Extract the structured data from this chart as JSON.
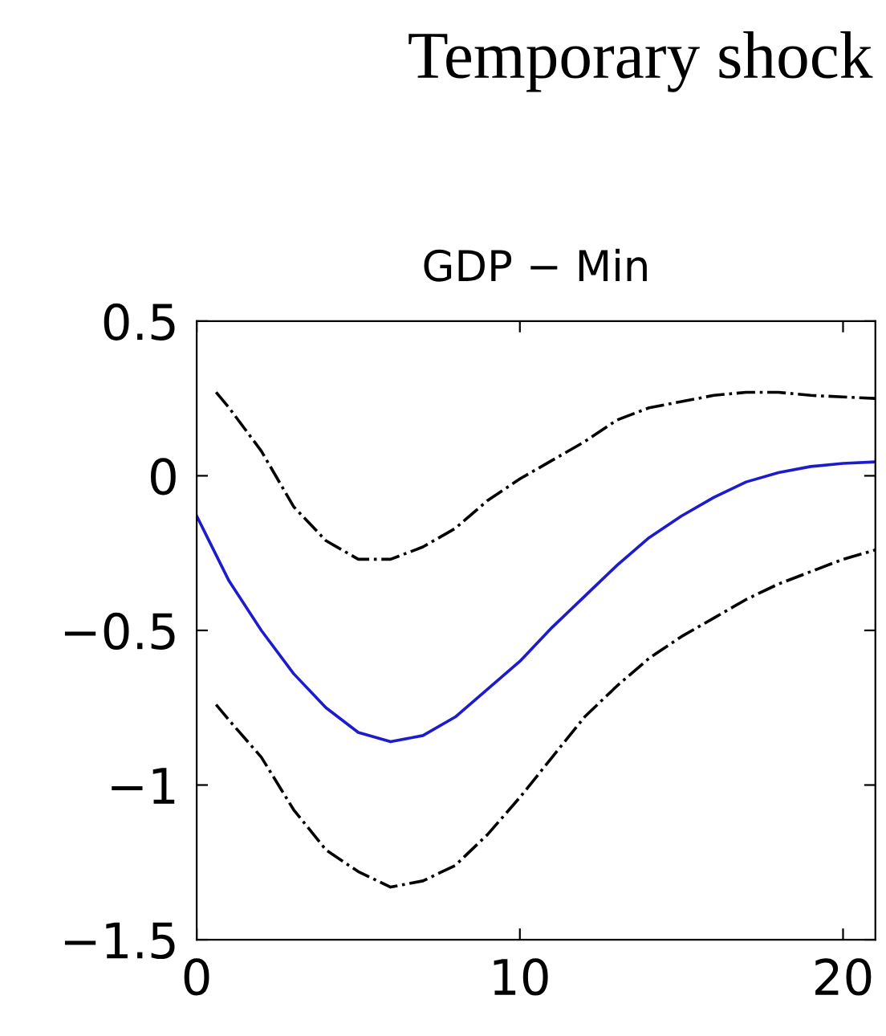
{
  "chart_data": {
    "type": "line",
    "title": "Temporary shock",
    "subtitle": "GDP − Min",
    "xlim": [
      0,
      21
    ],
    "ylim": [
      -1.5,
      0.5
    ],
    "xticks": [
      0,
      10,
      20
    ],
    "yticks": [
      -1.5,
      -1,
      -0.5,
      0,
      0.5
    ],
    "grid": false,
    "legend": false,
    "series": [
      {
        "color": "#1c1ccc",
        "line_style": "solid",
        "x": [
          0,
          1,
          2,
          3,
          4,
          5,
          6,
          7,
          8,
          9,
          10,
          11,
          12,
          13,
          14,
          15,
          16,
          17,
          18,
          19,
          20,
          21
        ],
        "values": [
          -0.13,
          -0.34,
          -0.5,
          -0.64,
          -0.75,
          -0.83,
          -0.86,
          -0.84,
          -0.78,
          -0.69,
          -0.6,
          -0.49,
          -0.39,
          -0.29,
          -0.2,
          -0.13,
          -0.07,
          -0.02,
          0.01,
          0.03,
          0.04,
          0.045
        ]
      },
      {
        "color": "#000000",
        "line_style": "dashdot",
        "x": [
          0.6,
          1,
          2,
          3,
          4,
          5,
          6,
          7,
          8,
          9,
          10,
          11,
          12,
          13,
          14,
          15,
          16,
          17,
          18,
          19,
          20,
          21
        ],
        "values": [
          0.27,
          0.22,
          0.08,
          -0.1,
          -0.21,
          -0.27,
          -0.27,
          -0.23,
          -0.17,
          -0.08,
          -0.01,
          0.05,
          0.11,
          0.18,
          0.22,
          0.24,
          0.26,
          0.27,
          0.27,
          0.26,
          0.255,
          0.25
        ]
      },
      {
        "color": "#000000",
        "line_style": "dashdot",
        "x": [
          0.6,
          1,
          2,
          3,
          4,
          5,
          6,
          7,
          8,
          9,
          10,
          11,
          12,
          13,
          14,
          15,
          16,
          17,
          18,
          19,
          20,
          21
        ],
        "values": [
          -0.74,
          -0.79,
          -0.91,
          -1.08,
          -1.21,
          -1.28,
          -1.33,
          -1.31,
          -1.26,
          -1.16,
          -1.04,
          -0.91,
          -0.78,
          -0.68,
          -0.59,
          -0.52,
          -0.46,
          -0.4,
          -0.35,
          -0.31,
          -0.27,
          -0.24
        ]
      }
    ]
  }
}
